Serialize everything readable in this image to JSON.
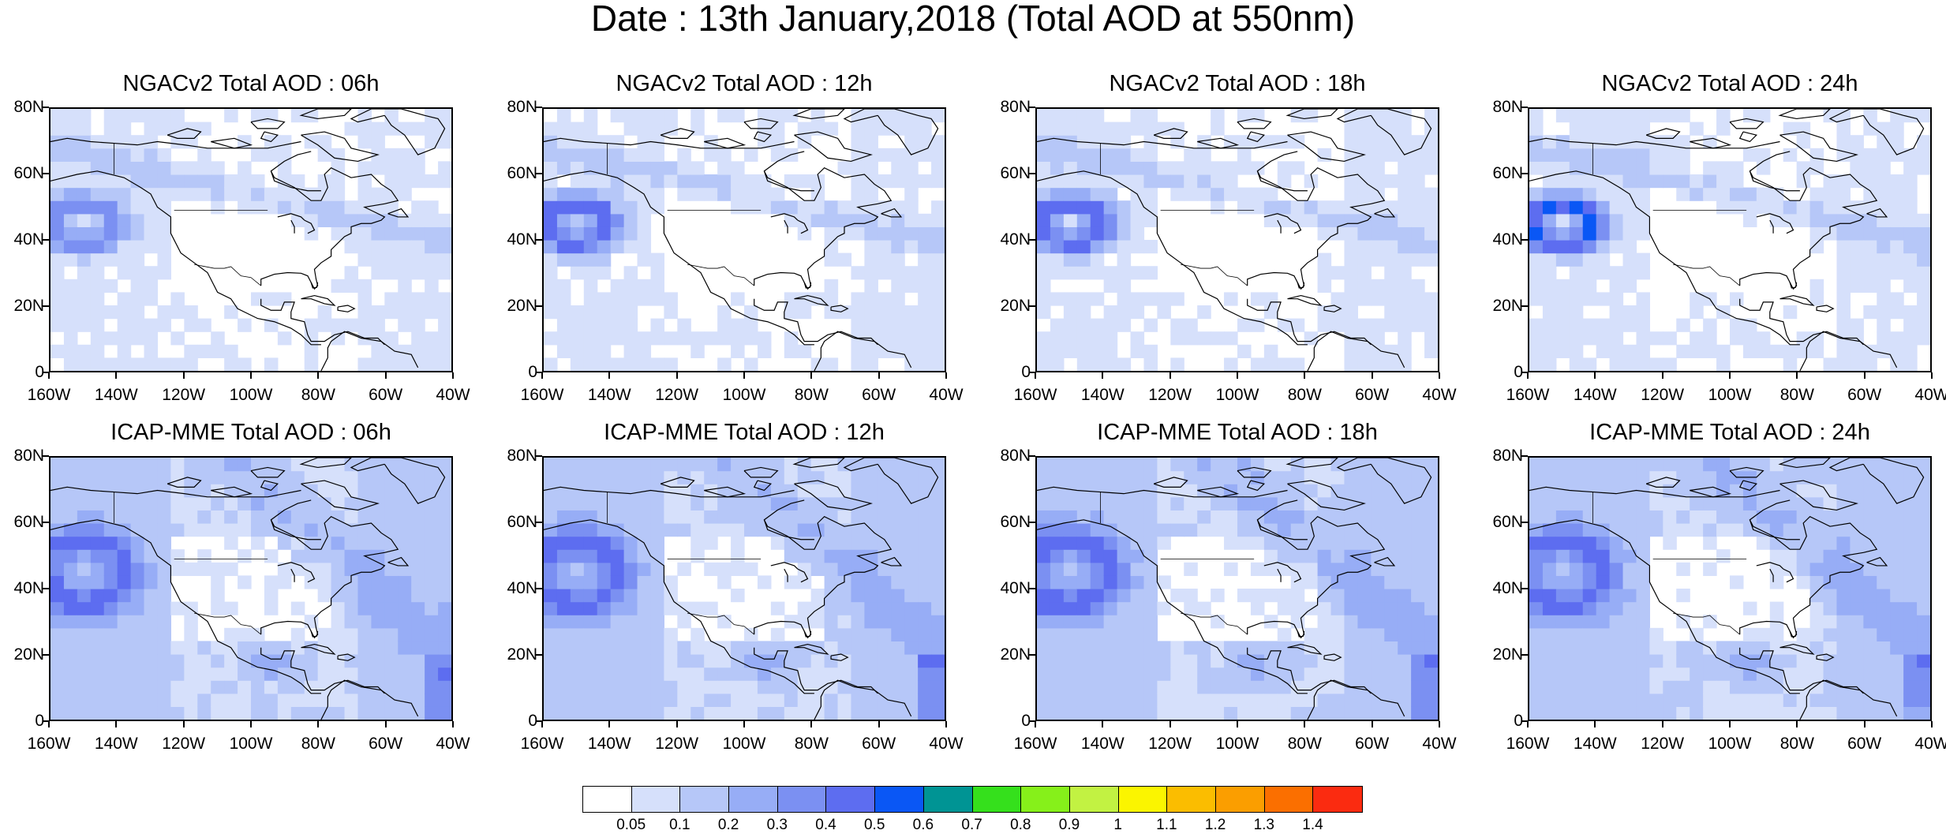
{
  "title": "Date : 13th January,2018 (Total AOD at 550nm)",
  "x_ticks": [
    "160W",
    "140W",
    "120W",
    "100W",
    "80W",
    "60W",
    "40W"
  ],
  "y_ticks": [
    "80N",
    "60N",
    "40N",
    "20N",
    "0"
  ],
  "panels": [
    {
      "title": "NGACv2 Total AOD : 06h",
      "model": "NGACv2",
      "hour": "06h",
      "plume_strength": 0.3
    },
    {
      "title": "NGACv2 Total AOD : 12h",
      "model": "NGACv2",
      "hour": "12h",
      "plume_strength": 0.4
    },
    {
      "title": "NGACv2 Total AOD : 18h",
      "model": "NGACv2",
      "hour": "18h",
      "plume_strength": 0.4
    },
    {
      "title": "NGACv2 Total AOD : 24h",
      "model": "NGACv2",
      "hour": "24h",
      "plume_strength": 0.45
    },
    {
      "title": "ICAP-MME Total AOD : 06h",
      "model": "ICAP-MME",
      "hour": "06h",
      "plume_strength": 0.3
    },
    {
      "title": "ICAP-MME Total AOD : 12h",
      "model": "ICAP-MME",
      "hour": "12h",
      "plume_strength": 0.3
    },
    {
      "title": "ICAP-MME Total AOD : 18h",
      "model": "ICAP-MME",
      "hour": "18h",
      "plume_strength": 0.3
    },
    {
      "title": "ICAP-MME Total AOD : 24h",
      "model": "ICAP-MME",
      "hour": "24h",
      "plume_strength": 0.3
    }
  ],
  "colorbar": {
    "labels": [
      "0.05",
      "0.1",
      "0.2",
      "0.3",
      "0.4",
      "0.5",
      "0.6",
      "0.7",
      "0.8",
      "0.9",
      "1",
      "1.1",
      "1.2",
      "1.3",
      "1.4"
    ],
    "colors": [
      "#ffffff",
      "#d6e0fb",
      "#b6c7f8",
      "#97adf6",
      "#7b90f2",
      "#5d6df0",
      "#0a57f5",
      "#009494",
      "#35e01c",
      "#86f01a",
      "#c2f242",
      "#fbf500",
      "#fbbd00",
      "#fb9e00",
      "#fb6f00",
      "#fb2b10"
    ]
  }
}
